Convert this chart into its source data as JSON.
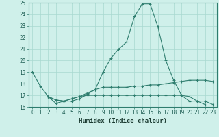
{
  "xlabel": "Humidex (Indice chaleur)",
  "x_values": [
    0,
    1,
    2,
    3,
    4,
    5,
    6,
    7,
    8,
    9,
    10,
    11,
    12,
    13,
    14,
    15,
    16,
    17,
    18,
    19,
    20,
    21,
    22,
    23
  ],
  "line1": [
    19.0,
    17.8,
    16.9,
    16.3,
    16.5,
    16.5,
    16.7,
    17.1,
    17.5,
    19.0,
    20.2,
    21.0,
    21.6,
    23.8,
    24.9,
    24.9,
    22.9,
    20.0,
    18.3,
    17.0,
    16.5,
    16.5,
    16.2,
    null
  ],
  "line2": [
    null,
    null,
    16.9,
    16.6,
    16.5,
    16.7,
    16.9,
    17.2,
    17.5,
    17.7,
    17.7,
    17.7,
    17.7,
    17.8,
    17.8,
    17.9,
    17.9,
    18.0,
    18.1,
    18.2,
    18.3,
    18.3,
    18.3,
    18.2
  ],
  "line3": [
    null,
    null,
    16.9,
    16.6,
    16.5,
    16.7,
    16.9,
    17.0,
    17.0,
    17.0,
    17.0,
    17.0,
    17.0,
    17.0,
    17.0,
    17.0,
    17.0,
    17.0,
    17.0,
    17.0,
    16.9,
    16.5,
    16.5,
    16.2
  ],
  "ylim": [
    16,
    25
  ],
  "yticks": [
    16,
    17,
    18,
    19,
    20,
    21,
    22,
    23,
    24,
    25
  ],
  "line_color": "#2e7d6e",
  "bg_color": "#cff0ea",
  "grid_color": "#a8d8d0"
}
